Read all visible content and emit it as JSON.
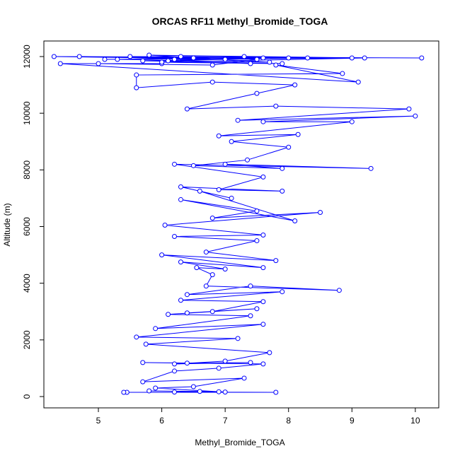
{
  "chart_data": {
    "type": "line",
    "markers": true,
    "title": "ORCAS RF11 Methyl_Bromide_TOGA",
    "x_label": "Methyl_Bromide_TOGA",
    "y_label": "Altitude (m)",
    "x": [
      5.45,
      5.4,
      7.8,
      6.2,
      6.9,
      5.8,
      6.6,
      7.0,
      5.9,
      6.5,
      7.3,
      5.7,
      6.2,
      6.9,
      7.6,
      5.7,
      6.4,
      7.4,
      6.2,
      7.0,
      7.7,
      5.75,
      7.2,
      5.6,
      7.6,
      5.9,
      7.4,
      6.1,
      7.5,
      6.4,
      6.8,
      7.6,
      6.3,
      7.9,
      6.4,
      7.4,
      8.8,
      6.7,
      6.8,
      6.55,
      7.0,
      6.3,
      7.6,
      6.0,
      7.8,
      6.7,
      7.5,
      6.2,
      7.6,
      6.05,
      8.5,
      6.8,
      7.5,
      6.3,
      8.1,
      6.6,
      7.1,
      6.3,
      7.9,
      6.9,
      7.6,
      6.2,
      9.3,
      7.0,
      7.9,
      6.5,
      7.35,
      8.0,
      7.1,
      8.15,
      6.9,
      9.0,
      7.6,
      10.0,
      7.2,
      9.9,
      7.8,
      6.4,
      7.5,
      8.1,
      6.8,
      5.6,
      5.6,
      8.85,
      7.8,
      9.1,
      4.4,
      6.0,
      5.0,
      6.8,
      7.5,
      4.3,
      10.1,
      5.5,
      9.0,
      6.2,
      8.0,
      4.7,
      6.5,
      7.3,
      5.3,
      7.7,
      5.8,
      9.2,
      6.0,
      7.9,
      5.7,
      7.0,
      6.3,
      8.3,
      5.1,
      7.6,
      6.1,
      7.4
    ],
    "series": [
      {
        "color": "#0000ff",
        "values": [
          150,
          150,
          150,
          160,
          170,
          200,
          180,
          160,
          300,
          350,
          650,
          520,
          900,
          1000,
          1150,
          1200,
          1180,
          1200,
          1150,
          1250,
          1550,
          1850,
          2050,
          2100,
          2550,
          2400,
          2850,
          2900,
          3100,
          2950,
          3000,
          3350,
          3400,
          3700,
          3600,
          3900,
          3750,
          3900,
          4300,
          4550,
          4500,
          4750,
          4550,
          5000,
          4800,
          5100,
          5500,
          5650,
          5700,
          6050,
          6500,
          6300,
          6550,
          6950,
          6200,
          7250,
          7000,
          7400,
          7250,
          7300,
          7750,
          8200,
          8050,
          8200,
          8050,
          8150,
          8350,
          8800,
          9000,
          9250,
          9200,
          9700,
          9700,
          9900,
          9750,
          10150,
          10250,
          10150,
          10700,
          11000,
          11100,
          10900,
          11350,
          11400,
          11700,
          11100,
          11750,
          11750,
          11750,
          11700,
          11900,
          12000,
          11950,
          12000,
          11950,
          11900,
          11950,
          12000,
          11950,
          12000,
          11900,
          11800,
          12050,
          11950,
          11800,
          11750,
          11850,
          11900,
          12000,
          11950,
          11900,
          11950,
          11850,
          11750
        ]
      }
    ],
    "xlim": [
      4.14,
      10.37
    ],
    "xticks": [
      5,
      6,
      7,
      8,
      9,
      10
    ],
    "ylim": [
      -399,
      12549
    ],
    "yticks": [
      0,
      2000,
      4000,
      6000,
      8000,
      10000,
      12000
    ]
  }
}
